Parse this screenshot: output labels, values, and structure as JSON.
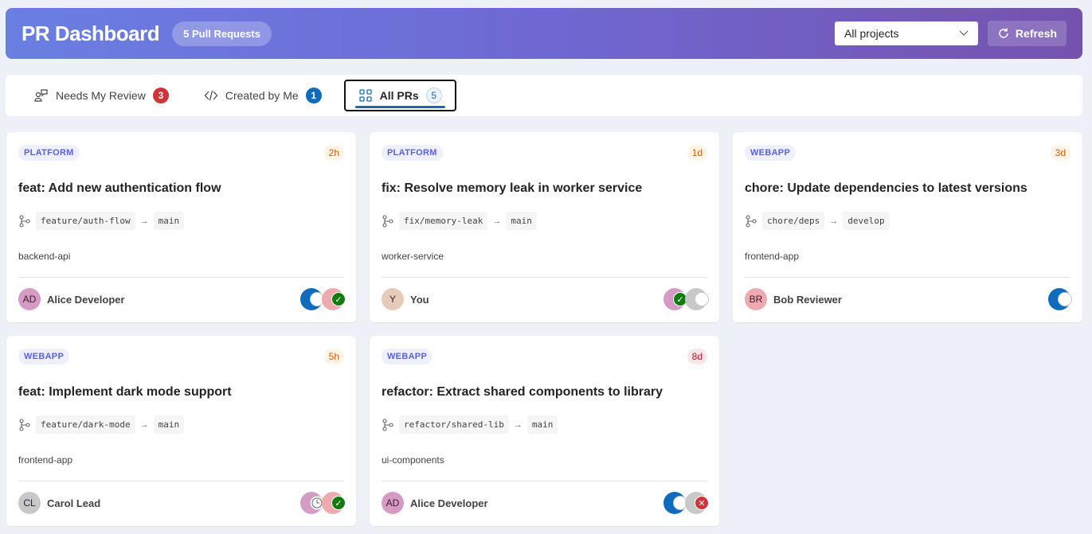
{
  "header": {
    "title": "PR Dashboard",
    "count_label": "5 Pull Requests",
    "project_filter": "All projects",
    "refresh_label": "Refresh"
  },
  "tabs": [
    {
      "label": "Needs My Review",
      "count": "3",
      "icon": "people-review-icon",
      "badge_color": "#d13438"
    },
    {
      "label": "Created by Me",
      "count": "1",
      "icon": "code-icon",
      "badge_color": "#0f6cbd"
    },
    {
      "label": "All PRs",
      "count": "5",
      "icon": "grid-icon",
      "active": true
    }
  ],
  "colors": {
    "age_orange": "#fff4e5",
    "age_orange_text": "#da5a00",
    "age_red": "#fde7e9",
    "age_red_text": "#c50f1f"
  },
  "prs": [
    {
      "project": "PLATFORM",
      "age": "2h",
      "age_level": "orange",
      "title": "feat: Add new authentication flow",
      "source": "feature/auth-flow",
      "target": "main",
      "repo": "backend-api",
      "author": {
        "initials": "AD",
        "name": "Alice Developer",
        "color": "#d69bc5"
      },
      "reviewers": [
        {
          "color": "#0f6cbd",
          "status": "pending"
        },
        {
          "color": "#eeaaae",
          "status": "approved"
        }
      ]
    },
    {
      "project": "PLATFORM",
      "age": "1d",
      "age_level": "orange",
      "title": "fix: Resolve memory leak in worker service",
      "source": "fix/memory-leak",
      "target": "main",
      "repo": "worker-service",
      "author": {
        "initials": "Y",
        "name": "You",
        "color": "#e6cbb8"
      },
      "reviewers": [
        {
          "color": "#d69bc5",
          "status": "approved"
        },
        {
          "color": "#c8c8c8",
          "status": "pending"
        }
      ]
    },
    {
      "project": "WEBAPP",
      "age": "3d",
      "age_level": "orange",
      "title": "chore: Update dependencies to latest versions",
      "source": "chore/deps",
      "target": "develop",
      "repo": "frontend-app",
      "author": {
        "initials": "BR",
        "name": "Bob Reviewer",
        "color": "#eeaaae"
      },
      "reviewers": [
        {
          "color": "#0f6cbd",
          "status": "pending"
        }
      ]
    },
    {
      "project": "WEBAPP",
      "age": "5h",
      "age_level": "orange",
      "title": "feat: Implement dark mode support",
      "source": "feature/dark-mode",
      "target": "main",
      "repo": "frontend-app",
      "author": {
        "initials": "CL",
        "name": "Carol Lead",
        "color": "#c8c8c8"
      },
      "reviewers": [
        {
          "color": "#d69bc5",
          "status": "waiting"
        },
        {
          "color": "#eeaaae",
          "status": "approved"
        }
      ]
    },
    {
      "project": "WEBAPP",
      "age": "8d",
      "age_level": "red",
      "title": "refactor: Extract shared components to library",
      "source": "refactor/shared-lib",
      "target": "main",
      "repo": "ui-components",
      "author": {
        "initials": "AD",
        "name": "Alice Developer",
        "color": "#d69bc5"
      },
      "reviewers": [
        {
          "color": "#0f6cbd",
          "status": "pending"
        },
        {
          "color": "#c8c8c8",
          "status": "rejected"
        }
      ]
    }
  ]
}
